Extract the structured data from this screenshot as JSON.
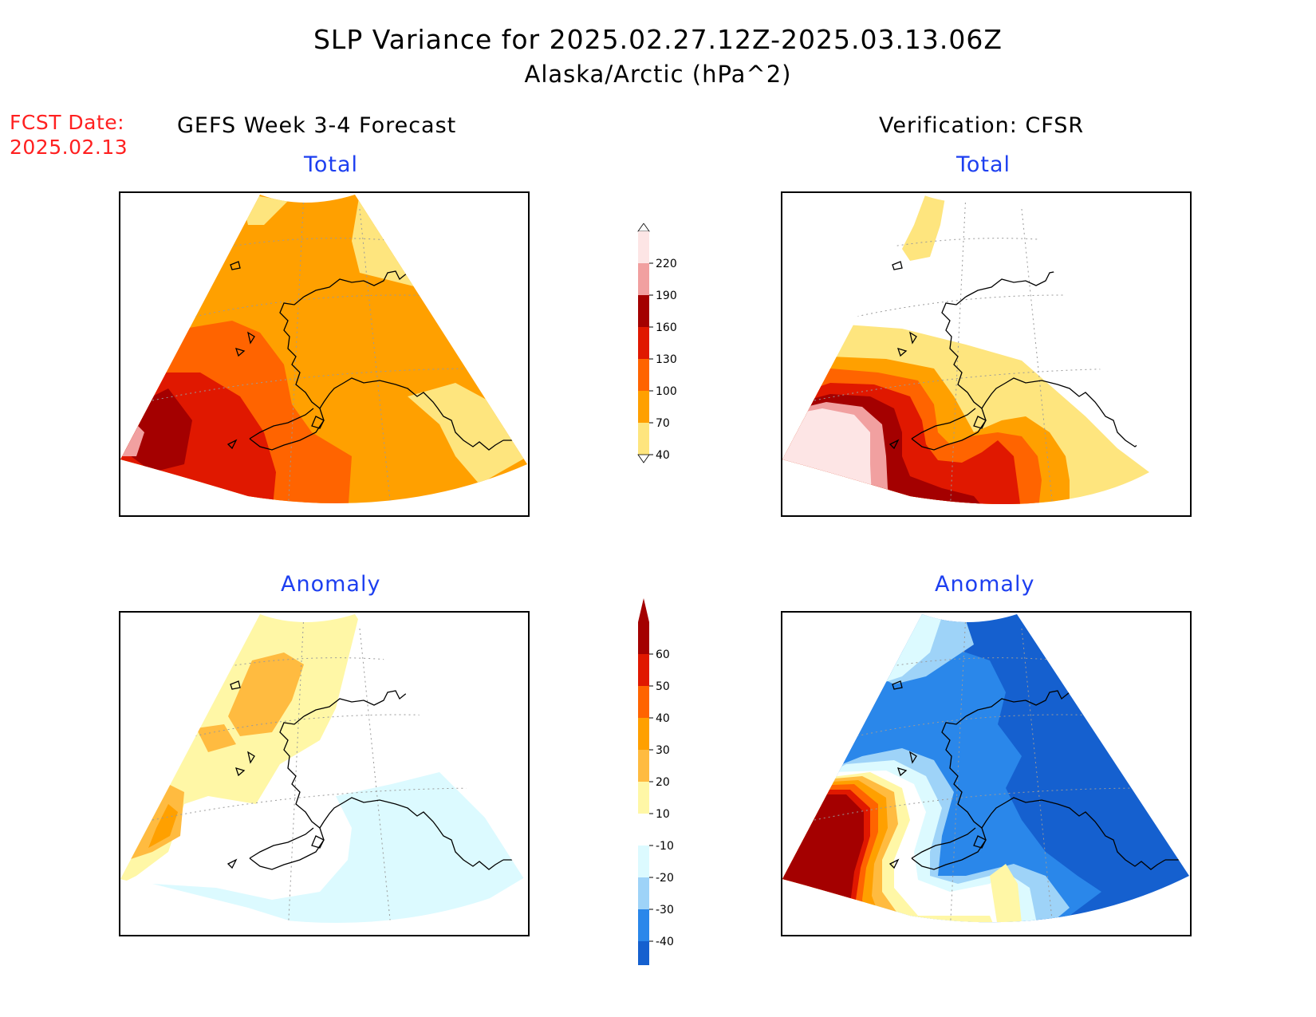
{
  "title": "SLP Variance for 2025.02.27.12Z-2025.03.13.06Z",
  "subtitle": "Alaska/Arctic (hPa^2)",
  "forecast_date": {
    "label": "FCST Date:",
    "value": "2025.02.13"
  },
  "columns": {
    "left": "GEFS Week 3-4 Forecast",
    "right": "Verification: CFSR"
  },
  "panels": {
    "top_left": "Total",
    "top_right": "Total",
    "bottom_left": "Anomaly",
    "bottom_right": "Anomaly"
  },
  "colorbars": {
    "total": {
      "labels": [
        "220",
        "190",
        "160",
        "130",
        "100",
        "70",
        "40"
      ],
      "colors": [
        "#fde5e5",
        "#f1a0a0",
        "#a40000",
        "#e01800",
        "#ff6400",
        "#ffa000",
        "#fee57e"
      ]
    },
    "anomaly": {
      "labels": [
        "60",
        "50",
        "40",
        "30",
        "20",
        "10",
        "-10",
        "-20",
        "-30",
        "-40"
      ],
      "colors": [
        "#a40000",
        "#e01800",
        "#ff6400",
        "#ffa000",
        "#ffbb40",
        "#fff7a6",
        "#ffffff",
        "#dcfaff",
        "#9ed3f8",
        "#2a87ea",
        "#1560cf"
      ]
    }
  },
  "colors": {
    "title_red": "#ff2020",
    "subtitle_blue": "#1d3ff0"
  }
}
